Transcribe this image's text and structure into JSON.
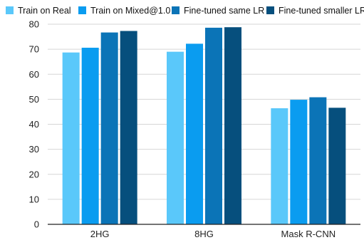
{
  "chart_data": {
    "type": "bar",
    "categories": [
      "2HG",
      "8HG",
      "Mask R-CNN"
    ],
    "series": [
      {
        "name": "Train on Real",
        "color": "#5ac8fa",
        "values": [
          68.7,
          69.0,
          46.4
        ]
      },
      {
        "name": "Train on Mixed@1.0",
        "color": "#0a9cf0",
        "values": [
          70.6,
          72.2,
          49.8
        ]
      },
      {
        "name": "Fine-tuned same LR",
        "color": "#0b74b7",
        "values": [
          76.7,
          78.6,
          50.8
        ]
      },
      {
        "name": "Fine-tuned smaller LR",
        "color": "#064f7d",
        "values": [
          77.3,
          78.8,
          46.6
        ]
      }
    ],
    "title": "",
    "xlabel": "",
    "ylabel": "",
    "ylim": [
      0,
      80
    ],
    "yticks": [
      0,
      10,
      20,
      30,
      40,
      50,
      60,
      70,
      80
    ],
    "grid": true,
    "legend": "top"
  }
}
